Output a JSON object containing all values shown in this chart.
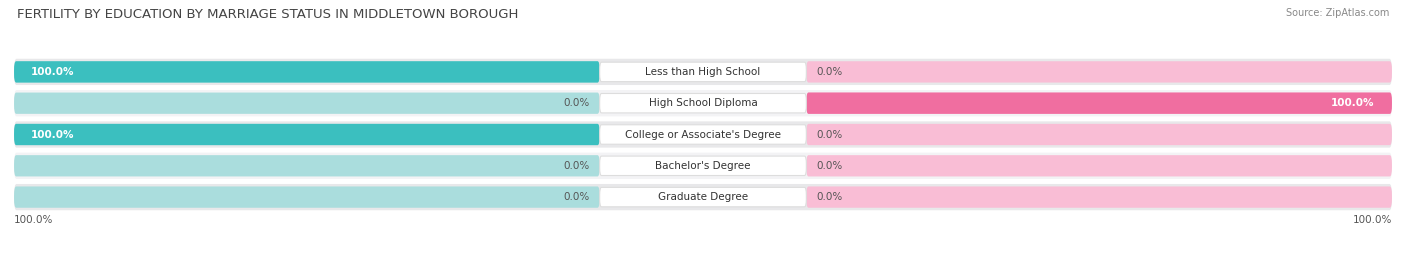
{
  "title": "FERTILITY BY EDUCATION BY MARRIAGE STATUS IN MIDDLETOWN BOROUGH",
  "source": "Source: ZipAtlas.com",
  "categories": [
    "Less than High School",
    "High School Diploma",
    "College or Associate's Degree",
    "Bachelor's Degree",
    "Graduate Degree"
  ],
  "married": [
    100.0,
    0.0,
    100.0,
    0.0,
    0.0
  ],
  "unmarried": [
    0.0,
    100.0,
    0.0,
    0.0,
    0.0
  ],
  "married_color": "#3bbfbf",
  "unmarried_color": "#f06ea0",
  "married_light_color": "#aadddd",
  "unmarried_light_color": "#f9bdd5",
  "title_fontsize": 9.5,
  "source_fontsize": 7,
  "label_fontsize": 7.5,
  "value_fontsize": 7.5,
  "legend_fontsize": 8,
  "background_color": "#ffffff",
  "row_bg_even": "#e8e8ea",
  "row_bg_odd": "#f3f3f5"
}
